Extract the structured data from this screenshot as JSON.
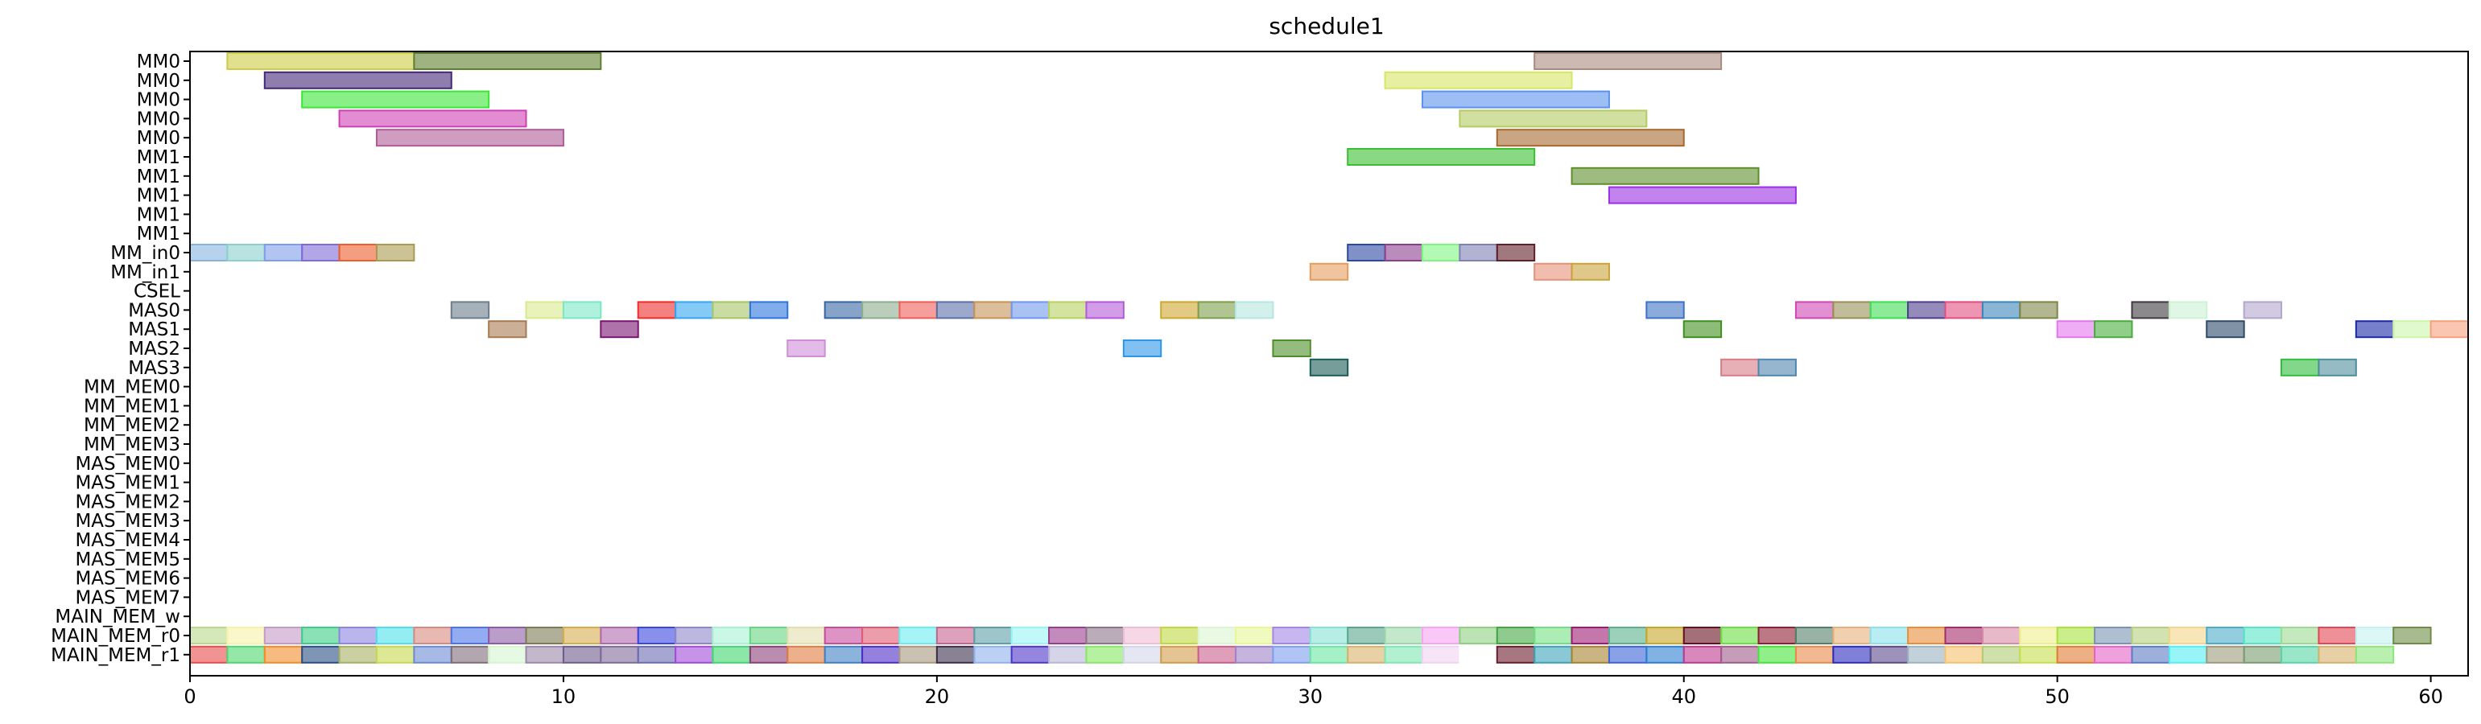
{
  "chart_data": {
    "type": "gantt",
    "title": "schedule1",
    "xlabel": "",
    "ylabel": "",
    "xlim": [
      0,
      61
    ],
    "x_ticks": [
      0,
      10,
      20,
      30,
      40,
      50,
      60
    ],
    "grid": false,
    "rows": [
      "MM0",
      "MM0",
      "MM0",
      "MM0",
      "MM0",
      "MM1",
      "MM1",
      "MM1",
      "MM1",
      "MM1",
      "MM_in0",
      "MM_in1",
      "CSEL",
      "MAS0",
      "MAS1",
      "MAS2",
      "MAS3",
      "MM_MEM0",
      "MM_MEM1",
      "MM_MEM2",
      "MM_MEM3",
      "MAS_MEM0",
      "MAS_MEM1",
      "MAS_MEM2",
      "MAS_MEM3",
      "MAS_MEM4",
      "MAS_MEM5",
      "MAS_MEM6",
      "MAS_MEM7",
      "MAIN_MEM_w",
      "MAIN_MEM_r0",
      "MAIN_MEM_r1"
    ],
    "bars": [
      {
        "row": 0,
        "start": 1,
        "end": 6,
        "color": "#cccc44"
      },
      {
        "row": 0,
        "start": 6,
        "end": 11,
        "color": "#5e7f2e"
      },
      {
        "row": 0,
        "start": 36,
        "end": 41,
        "color": "#a88a7e"
      },
      {
        "row": 1,
        "start": 2,
        "end": 7,
        "color": "#442877"
      },
      {
        "row": 1,
        "start": 32,
        "end": 37,
        "color": "#d7e664"
      },
      {
        "row": 2,
        "start": 3,
        "end": 8,
        "color": "#3be637"
      },
      {
        "row": 2,
        "start": 33,
        "end": 38,
        "color": "#5b92ef"
      },
      {
        "row": 3,
        "start": 4,
        "end": 9,
        "color": "#cf3fb4"
      },
      {
        "row": 3,
        "start": 34,
        "end": 39,
        "color": "#b3cc63"
      },
      {
        "row": 4,
        "start": 5,
        "end": 10,
        "color": "#ad5c95"
      },
      {
        "row": 4,
        "start": 35,
        "end": 40,
        "color": "#a6692d"
      },
      {
        "row": 5,
        "start": 31,
        "end": 36,
        "color": "#3bbf32"
      },
      {
        "row": 6,
        "start": 37,
        "end": 42,
        "color": "#5f8f2b"
      },
      {
        "row": 7,
        "start": 38,
        "end": 43,
        "color": "#9b31e5"
      },
      {
        "row": 10,
        "start": 0,
        "end": 1,
        "color": "#86b4df"
      },
      {
        "row": 10,
        "start": 1,
        "end": 2,
        "color": "#8ad0cb"
      },
      {
        "row": 10,
        "start": 2,
        "end": 3,
        "color": "#7f9de9"
      },
      {
        "row": 10,
        "start": 3,
        "end": 4,
        "color": "#7e6bd5"
      },
      {
        "row": 10,
        "start": 4,
        "end": 5,
        "color": "#ed5d2d"
      },
      {
        "row": 10,
        "start": 5,
        "end": 6,
        "color": "#a99b4f"
      },
      {
        "row": 10,
        "start": 31,
        "end": 32,
        "color": "#2c48a1"
      },
      {
        "row": 10,
        "start": 32,
        "end": 33,
        "color": "#8a3f8e"
      },
      {
        "row": 10,
        "start": 33,
        "end": 34,
        "color": "#7ff580"
      },
      {
        "row": 10,
        "start": 34,
        "end": 35,
        "color": "#7f81b4"
      },
      {
        "row": 10,
        "start": 35,
        "end": 36,
        "color": "#612028"
      },
      {
        "row": 11,
        "start": 30,
        "end": 31,
        "color": "#e49d5d"
      },
      {
        "row": 11,
        "start": 36,
        "end": 37,
        "color": "#e6917a"
      },
      {
        "row": 11,
        "start": 37,
        "end": 38,
        "color": "#c9a33a"
      },
      {
        "row": 13,
        "start": 7,
        "end": 8,
        "color": "#6c7d8c"
      },
      {
        "row": 13,
        "start": 9,
        "end": 10,
        "color": "#d8ea8c"
      },
      {
        "row": 13,
        "start": 10,
        "end": 11,
        "color": "#7ae7c6"
      },
      {
        "row": 13,
        "start": 12,
        "end": 13,
        "color": "#ef2c2c"
      },
      {
        "row": 13,
        "start": 13,
        "end": 14,
        "color": "#33a6f1"
      },
      {
        "row": 13,
        "start": 14,
        "end": 15,
        "color": "#a6c566"
      },
      {
        "row": 13,
        "start": 15,
        "end": 16,
        "color": "#2d74dd"
      },
      {
        "row": 13,
        "start": 17,
        "end": 18,
        "color": "#3766a4"
      },
      {
        "row": 13,
        "start": 18,
        "end": 19,
        "color": "#8cad8e"
      },
      {
        "row": 13,
        "start": 19,
        "end": 20,
        "color": "#ef5d58"
      },
      {
        "row": 13,
        "start": 20,
        "end": 21,
        "color": "#5c6fa7"
      },
      {
        "row": 13,
        "start": 21,
        "end": 22,
        "color": "#c79356"
      },
      {
        "row": 13,
        "start": 22,
        "end": 23,
        "color": "#7298ec"
      },
      {
        "row": 13,
        "start": 23,
        "end": 24,
        "color": "#b7d260"
      },
      {
        "row": 13,
        "start": 24,
        "end": 25,
        "color": "#b45ad8"
      },
      {
        "row": 13,
        "start": 26,
        "end": 27,
        "color": "#cfa72e"
      },
      {
        "row": 13,
        "start": 27,
        "end": 28,
        "color": "#7d9e4b"
      },
      {
        "row": 13,
        "start": 28,
        "end": 29,
        "color": "#b6e6e1"
      },
      {
        "row": 13,
        "start": 39,
        "end": 40,
        "color": "#3d73c4"
      },
      {
        "row": 13,
        "start": 43,
        "end": 44,
        "color": "#d146b5"
      },
      {
        "row": 13,
        "start": 44,
        "end": 45,
        "color": "#988f56"
      },
      {
        "row": 13,
        "start": 45,
        "end": 46,
        "color": "#3ede54"
      },
      {
        "row": 13,
        "start": 46,
        "end": 47,
        "color": "#4e3d8c"
      },
      {
        "row": 13,
        "start": 47,
        "end": 48,
        "color": "#e34e80"
      },
      {
        "row": 13,
        "start": 48,
        "end": 49,
        "color": "#3c86bb"
      },
      {
        "row": 13,
        "start": 49,
        "end": 50,
        "color": "#7f8547"
      },
      {
        "row": 13,
        "start": 52,
        "end": 53,
        "color": "#403a40"
      },
      {
        "row": 13,
        "start": 53,
        "end": 54,
        "color": "#cdf2d4"
      },
      {
        "row": 13,
        "start": 55,
        "end": 56,
        "color": "#b3a6cb"
      },
      {
        "row": 14,
        "start": 8,
        "end": 9,
        "color": "#a97a52"
      },
      {
        "row": 14,
        "start": 11,
        "end": 12,
        "color": "#7a1672"
      },
      {
        "row": 14,
        "start": 40,
        "end": 41,
        "color": "#3f8f1e"
      },
      {
        "row": 14,
        "start": 50,
        "end": 51,
        "color": "#e277ef"
      },
      {
        "row": 14,
        "start": 51,
        "end": 52,
        "color": "#49ad3d"
      },
      {
        "row": 14,
        "start": 54,
        "end": 55,
        "color": "#2c4b6b"
      },
      {
        "row": 14,
        "start": 58,
        "end": 59,
        "color": "#1b2aa5"
      },
      {
        "row": 14,
        "start": 59,
        "end": 60,
        "color": "#ccf7ab"
      },
      {
        "row": 14,
        "start": 60,
        "end": 61,
        "color": "#f6a07e"
      },
      {
        "row": 15,
        "start": 16,
        "end": 17,
        "color": "#d08ed9"
      },
      {
        "row": 15,
        "start": 25,
        "end": 26,
        "color": "#2c97ea"
      },
      {
        "row": 15,
        "start": 29,
        "end": 30,
        "color": "#4f8f2a"
      },
      {
        "row": 16,
        "start": 30,
        "end": 31,
        "color": "#1b5b55"
      },
      {
        "row": 16,
        "start": 41,
        "end": 42,
        "color": "#d57c85"
      },
      {
        "row": 16,
        "start": 42,
        "end": 43,
        "color": "#4f86ae"
      },
      {
        "row": 16,
        "start": 56,
        "end": 57,
        "color": "#2fbd3d"
      },
      {
        "row": 16,
        "start": 57,
        "end": 58,
        "color": "#4e8d9c"
      }
    ],
    "mem_rows": {
      "w_row": 30,
      "r_row": 31,
      "w_colors": [
        "#b9d88c",
        "#f7f3a9",
        "#c49ac7",
        "#3ccd86",
        "#8c86e1",
        "#4ee1ec",
        "#d98a80",
        "#4b75e7",
        "#8e5ba6",
        "#7c7b54",
        "#d7ad4c",
        "#b16aae",
        "#3a46e0",
        "#8e87c9",
        "#a7f1d5",
        "#66d680",
        "#e2deae",
        "#c74d9e",
        "#df5b73",
        "#6aedef",
        "#c6638f",
        "#5c9fa6",
        "#97f5f4",
        "#9a3d8f",
        "#8c7588",
        "#efbdd6",
        "#c0d93f",
        "#dcf5d1",
        "#e8f693",
        "#a287e8",
        "#86e3d4",
        "#59a78e",
        "#9cd8a9",
        "#f7a4f2",
        "#8fd082",
        "#44a742",
        "#75df84",
        "#9b1c72",
        "#5cb18c",
        "#c6a728",
        "#661022",
        "#6be045",
        "#8f1f34",
        "#53806a",
        "#e6b07a",
        "#8be1ec",
        "#e88e3a",
        "#a52c69",
        "#d78ba5",
        "#f0ef8e",
        "#a8e23c",
        "#7c92b4",
        "#b4d07d",
        "#f3d68b",
        "#4cabc8",
        "#56e4c7",
        "#9cdb92",
        "#e14654",
        "#c6f1f2",
        "#6e8c44"
      ],
      "r_colors": [
        "#ea4b4b",
        "#4fd76e",
        "#f18c29",
        "#2a4f86",
        "#a6b062",
        "#c6d84f",
        "#6c8ad4",
        "#7f6c79",
        "#d5f5cf",
        "#9b87a9",
        "#6d5c8c",
        "#7f6b9a",
        "#6b6ab3",
        "#a04bd9",
        "#3fd66e",
        "#8c3f77",
        "#e07d40",
        "#3f81c3",
        "#4c2bc6",
        "#a99780",
        "#3b2f4a",
        "#8fb1ec",
        "#4d36c9",
        "#b9b7d8",
        "#86e864",
        "#d2d5e8",
        "#d29c4a",
        "#c95d8c",
        "#9e82c8",
        "#7c9ff0",
        "#6ae6a4",
        "#d8b06c",
        "#7fe6b4",
        "#efd4f0",
        "#ffffff",
        "#6b1d2c",
        "#3aa3b8",
        "#a5822f",
        "#3b63d6",
        "#2c7fd2",
        "#c0398f",
        "#a05c8a",
        "#46e53a",
        "#e9894a",
        "#2b2bbe",
        "#5b4a8c",
        "#9bb3c1",
        "#f5c16d",
        "#b1cc73",
        "#c6e04c",
        "#e17a32",
        "#e563c8",
        "#5b7bc4",
        "#51eef3",
        "#9d9b7c",
        "#7a9b6f",
        "#57d6a5",
        "#d7b06b",
        "#8ce67a"
      ]
    }
  }
}
